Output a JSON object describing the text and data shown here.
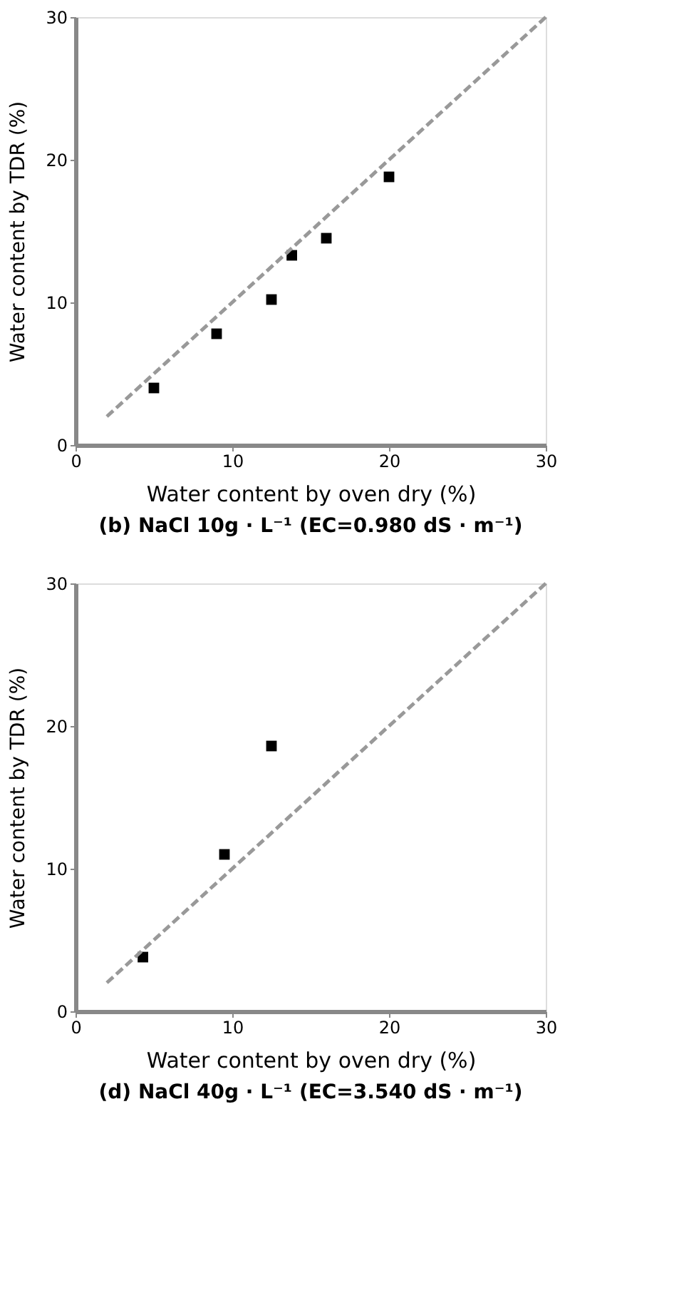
{
  "chart_data": [
    {
      "type": "scatter",
      "title": "(b) NaCl 10g · L⁻¹ (EC=0.980 dS · m⁻¹)",
      "xlabel": "Water content by oven dry (%)",
      "ylabel": "Water content by TDR (%)",
      "xlim": [
        0,
        30
      ],
      "ylim": [
        0,
        30
      ],
      "xticks": [
        0,
        10,
        20,
        30
      ],
      "yticks": [
        0,
        10,
        20,
        30
      ],
      "grid": false,
      "marker": "square",
      "series": [
        {
          "color": "#000000",
          "x": [
            5,
            9,
            12.5,
            13.8,
            16,
            20
          ],
          "values": [
            4,
            7.8,
            10.2,
            13.3,
            14.5,
            18.8
          ]
        },
        {
          "type": "line",
          "color": "#999999",
          "line_style": "dashed",
          "marker": "none",
          "x": [
            2,
            30
          ],
          "values": [
            2,
            30
          ]
        }
      ]
    },
    {
      "type": "scatter",
      "title": "(d) NaCl 40g · L⁻¹ (EC=3.540 dS · m⁻¹)",
      "xlabel": "Water content by oven dry (%)",
      "ylabel": "Water content by TDR (%)",
      "xlim": [
        0,
        30
      ],
      "ylim": [
        0,
        30
      ],
      "xticks": [
        0,
        10,
        20,
        30
      ],
      "yticks": [
        0,
        10,
        20,
        30
      ],
      "grid": false,
      "marker": "square",
      "series": [
        {
          "color": "#000000",
          "x": [
            4.3,
            9.5,
            12.5
          ],
          "values": [
            3.8,
            11,
            18.6
          ]
        },
        {
          "type": "line",
          "color": "#999999",
          "line_style": "dashed",
          "marker": "none",
          "x": [
            2,
            30
          ],
          "values": [
            2,
            30
          ]
        }
      ]
    }
  ]
}
